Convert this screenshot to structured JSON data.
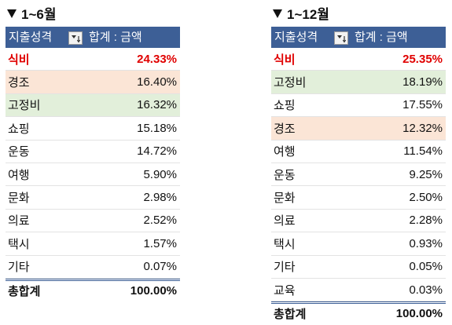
{
  "left": {
    "title": "1~6월",
    "header": {
      "row_label": "지출성격",
      "sum_label": "합계 : 금액"
    },
    "rows": [
      {
        "category": "식비",
        "value": "24.33%",
        "highlight": "red"
      },
      {
        "category": "경조",
        "value": "16.40%",
        "highlight": "peach"
      },
      {
        "category": "고정비",
        "value": "16.32%",
        "highlight": "green"
      },
      {
        "category": "쇼핑",
        "value": "15.18%",
        "highlight": ""
      },
      {
        "category": "운동",
        "value": "14.72%",
        "highlight": ""
      },
      {
        "category": "여행",
        "value": "5.90%",
        "highlight": ""
      },
      {
        "category": "문화",
        "value": "2.98%",
        "highlight": ""
      },
      {
        "category": "의료",
        "value": "2.52%",
        "highlight": ""
      },
      {
        "category": "택시",
        "value": "1.57%",
        "highlight": ""
      },
      {
        "category": "기타",
        "value": "0.07%",
        "highlight": ""
      }
    ],
    "total": {
      "label": "총합계",
      "value": "100.00%"
    }
  },
  "right": {
    "title": "1~12월",
    "header": {
      "row_label": "지출성격",
      "sum_label": "합계 : 금액"
    },
    "rows": [
      {
        "category": "식비",
        "value": "25.35%",
        "highlight": "red"
      },
      {
        "category": "고정비",
        "value": "18.19%",
        "highlight": "green"
      },
      {
        "category": "쇼핑",
        "value": "17.55%",
        "highlight": ""
      },
      {
        "category": "경조",
        "value": "12.32%",
        "highlight": "peach"
      },
      {
        "category": "여행",
        "value": "11.54%",
        "highlight": ""
      },
      {
        "category": "운동",
        "value": "9.25%",
        "highlight": ""
      },
      {
        "category": "문화",
        "value": "2.50%",
        "highlight": ""
      },
      {
        "category": "의료",
        "value": "2.28%",
        "highlight": ""
      },
      {
        "category": "택시",
        "value": "0.93%",
        "highlight": ""
      },
      {
        "category": "기타",
        "value": "0.05%",
        "highlight": ""
      },
      {
        "category": "교육",
        "value": "0.03%",
        "highlight": ""
      }
    ],
    "total": {
      "label": "총합계",
      "value": "100.00%"
    }
  },
  "colors": {
    "header_bg": "#3d5f96",
    "top_item_text": "#e00000",
    "peach_highlight": "#fbe5d6",
    "green_highlight": "#e2efda"
  },
  "icons": {
    "title_marker": "triangle-down-icon",
    "sort_button": "sort-filter-icon"
  }
}
